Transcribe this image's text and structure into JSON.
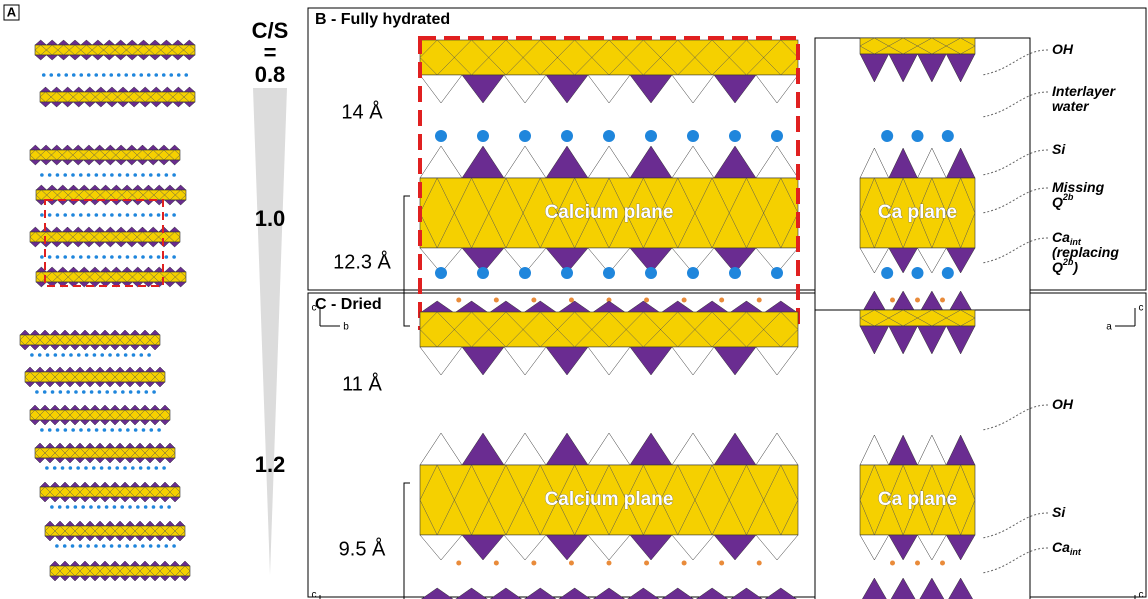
{
  "panel_a": {
    "label": "A",
    "cs_title": "C/S",
    "cs_equals": "=",
    "ratios": [
      "0.8",
      "1.0",
      "1.2"
    ]
  },
  "panel_b": {
    "title": "B - Fully hydrated",
    "spacings": [
      "14 Å",
      "12.3 Å"
    ],
    "plane_labels": [
      "Calcium plane",
      "Ca plane"
    ],
    "axes_left": [
      "c",
      "b"
    ],
    "axes_right": [
      "c",
      "a"
    ],
    "annotations": [
      [
        [
          {
            "text": "OH"
          }
        ]
      ],
      [
        [
          {
            "text": "Interlayer"
          }
        ],
        [
          {
            "text": "water"
          }
        ]
      ],
      [
        [
          {
            "text": "Si"
          }
        ]
      ],
      [
        [
          {
            "text": "Missing"
          }
        ],
        [
          {
            "text": "Q"
          },
          {
            "sup": "2b"
          }
        ]
      ],
      [
        [
          {
            "text": "Ca"
          },
          {
            "sub": "int"
          }
        ],
        [
          {
            "text": "(replacing"
          }
        ],
        [
          {
            "text": "Q"
          },
          {
            "sup": "2b"
          },
          {
            "text": ")"
          }
        ]
      ]
    ]
  },
  "panel_c": {
    "title": "C - Dried",
    "spacings": [
      "11 Å",
      "9.5 Å"
    ],
    "plane_labels": [
      "Calcium plane",
      "Ca plane"
    ],
    "axes_left": [
      "c",
      "b"
    ],
    "axes_right": [
      "c",
      "a"
    ],
    "annotations": [
      [
        [
          {
            "text": "OH"
          }
        ]
      ],
      [
        [
          {
            "text": "Si"
          }
        ]
      ],
      [
        [
          {
            "text": "Ca"
          },
          {
            "sub": "int"
          }
        ]
      ]
    ]
  }
}
